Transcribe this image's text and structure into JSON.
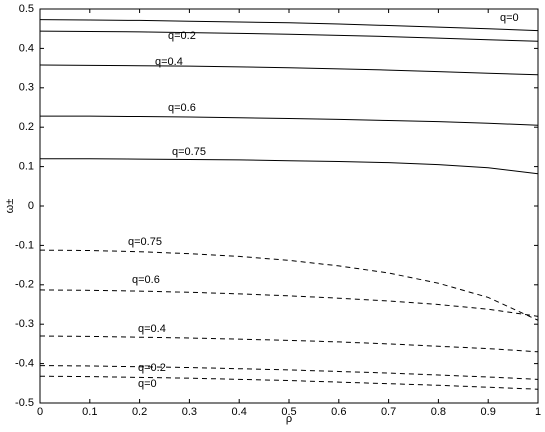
{
  "chart_data": {
    "type": "line",
    "x_label": "ρ",
    "y_label": "ω±",
    "x": [
      0,
      0.1,
      0.2,
      0.3,
      0.4,
      0.5,
      0.6,
      0.7,
      0.8,
      0.9,
      1
    ],
    "xlim": [
      0,
      1
    ],
    "xticks": [
      0,
      0.1,
      0.2,
      0.3,
      0.4,
      0.5,
      0.6,
      0.7,
      0.8,
      0.9,
      1
    ],
    "ylim": [
      -0.5,
      0.5
    ],
    "yticks": [
      -0.5,
      -0.4,
      -0.3,
      -0.2,
      -0.1,
      0,
      0.1,
      0.2,
      0.3,
      0.4,
      0.5
    ],
    "grid": false,
    "series": [
      {
        "name": "q=0",
        "color": "#000000",
        "dashed": false,
        "values": [
          0.473,
          0.472,
          0.471,
          0.469,
          0.467,
          0.465,
          0.462,
          0.458,
          0.454,
          0.45,
          0.445
        ]
      },
      {
        "name": "q=0.2",
        "color": "#000000",
        "dashed": false,
        "values": [
          0.444,
          0.443,
          0.442,
          0.44,
          0.438,
          0.436,
          0.433,
          0.43,
          0.426,
          0.422,
          0.418
        ]
      },
      {
        "name": "q=0.4",
        "color": "#000000",
        "dashed": false,
        "values": [
          0.358,
          0.357,
          0.356,
          0.355,
          0.353,
          0.351,
          0.348,
          0.345,
          0.341,
          0.337,
          0.333
        ]
      },
      {
        "name": "q=0.6",
        "color": "#000000",
        "dashed": false,
        "values": [
          0.228,
          0.228,
          0.227,
          0.226,
          0.224,
          0.222,
          0.22,
          0.217,
          0.214,
          0.21,
          0.205
        ]
      },
      {
        "name": "q=0.75",
        "color": "#000000",
        "dashed": false,
        "values": [
          0.12,
          0.12,
          0.119,
          0.118,
          0.117,
          0.115,
          0.113,
          0.11,
          0.105,
          0.097,
          0.082
        ]
      },
      {
        "name": "q=0.75",
        "color": "#000000",
        "dashed": true,
        "values": [
          -0.112,
          -0.113,
          -0.116,
          -0.121,
          -0.128,
          -0.138,
          -0.152,
          -0.17,
          -0.196,
          -0.232,
          -0.29
        ]
      },
      {
        "name": "q=0.6",
        "color": "#000000",
        "dashed": true,
        "values": [
          -0.213,
          -0.214,
          -0.216,
          -0.219,
          -0.223,
          -0.228,
          -0.234,
          -0.241,
          -0.25,
          -0.262,
          -0.28
        ]
      },
      {
        "name": "q=0.4",
        "color": "#000000",
        "dashed": true,
        "values": [
          -0.33,
          -0.331,
          -0.333,
          -0.335,
          -0.338,
          -0.341,
          -0.345,
          -0.35,
          -0.356,
          -0.362,
          -0.37
        ]
      },
      {
        "name": "q=0.2",
        "color": "#000000",
        "dashed": true,
        "values": [
          -0.405,
          -0.406,
          -0.408,
          -0.41,
          -0.413,
          -0.416,
          -0.42,
          -0.424,
          -0.429,
          -0.434,
          -0.44
        ]
      },
      {
        "name": "q=0",
        "color": "#000000",
        "dashed": true,
        "values": [
          -0.432,
          -0.433,
          -0.435,
          -0.437,
          -0.44,
          -0.443,
          -0.447,
          -0.451,
          -0.455,
          -0.46,
          -0.465
        ]
      }
    ]
  }
}
